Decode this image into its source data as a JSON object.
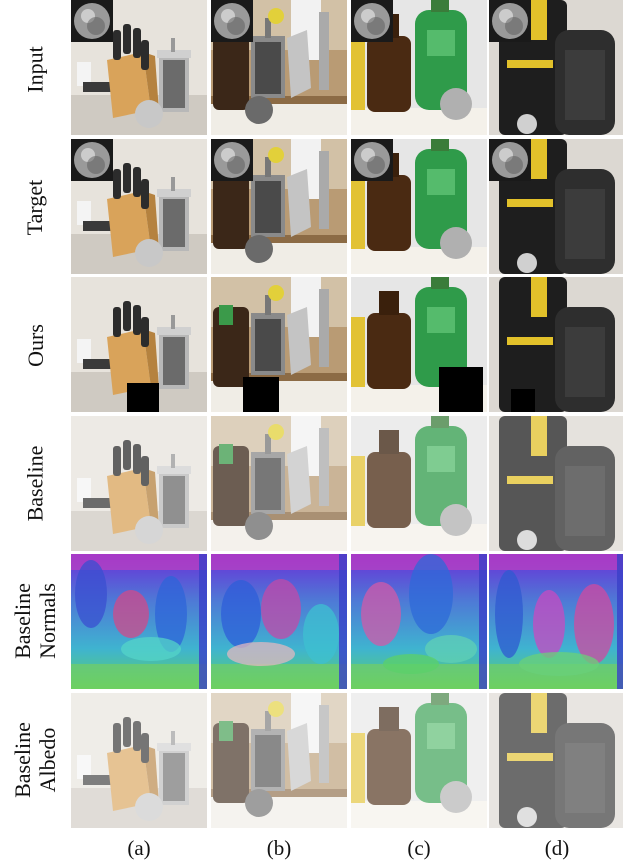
{
  "row_labels": [
    {
      "lines": [
        "Input"
      ]
    },
    {
      "lines": [
        "Target"
      ]
    },
    {
      "lines": [
        "Ours"
      ]
    },
    {
      "lines": [
        "Baseline"
      ]
    },
    {
      "lines": [
        "Baseline",
        "Normals"
      ]
    },
    {
      "lines": [
        "Baseline",
        "Albedo"
      ]
    }
  ],
  "column_labels": [
    "(a)",
    "(b)",
    "(c)",
    "(d)"
  ],
  "rows": [
    {
      "name": "input",
      "kind": "photo"
    },
    {
      "name": "target",
      "kind": "photo"
    },
    {
      "name": "ours",
      "kind": "photo"
    },
    {
      "name": "baseline",
      "kind": "blurred-photo"
    },
    {
      "name": "baseline-normals",
      "kind": "normal-map"
    },
    {
      "name": "baseline-albedo",
      "kind": "albedo"
    }
  ],
  "columns": [
    {
      "name": "a",
      "scene": "knife-block-and-french-press"
    },
    {
      "name": "b",
      "scene": "french-press-and-bottles"
    },
    {
      "name": "c",
      "scene": "beer-bottle-and-soda-bottle"
    },
    {
      "name": "d",
      "scene": "backpack"
    }
  ]
}
